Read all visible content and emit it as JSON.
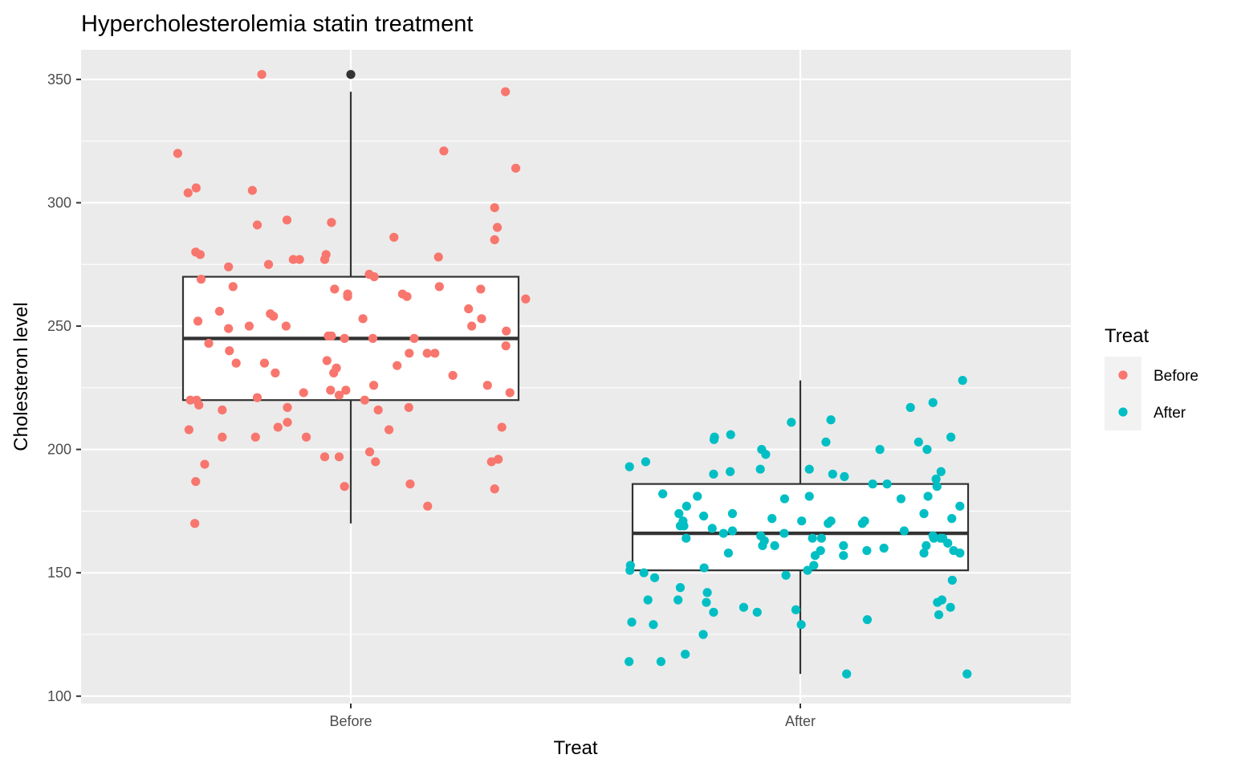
{
  "chart_data": {
    "type": "boxplot_with_jitter",
    "title": "Hypercholesterolemia statin treatment",
    "xlabel": "Treat",
    "ylabel": "Cholesteron level",
    "ylim": [
      97,
      362
    ],
    "yticks": [
      100,
      150,
      200,
      250,
      300,
      350
    ],
    "categories": [
      "Before",
      "After"
    ],
    "grid": true,
    "legend": {
      "title": "Treat",
      "position": "right",
      "entries": [
        {
          "label": "Before",
          "color": "#F8766D"
        },
        {
          "label": "After",
          "color": "#00BFC4"
        }
      ]
    },
    "colors": {
      "panel_background": "#EBEBEB",
      "grid": "#FFFFFF",
      "box_outline": "#333333",
      "outlier": "#333333"
    },
    "series": [
      {
        "name": "Before",
        "color": "#F8766D",
        "box": {
          "q1": 220,
          "median": 245,
          "q3": 270,
          "whisker_low": 170,
          "whisker_high": 345,
          "outliers": [
            352
          ]
        },
        "points": [
          [
            -0.385,
            320
          ],
          [
            -0.362,
            304
          ],
          [
            -0.344,
            306
          ],
          [
            -0.345,
            280
          ],
          [
            -0.335,
            279
          ],
          [
            -0.333,
            269
          ],
          [
            -0.34,
            252
          ],
          [
            -0.316,
            243
          ],
          [
            -0.292,
            256
          ],
          [
            -0.272,
            274
          ],
          [
            -0.272,
            249
          ],
          [
            -0.27,
            240
          ],
          [
            -0.262,
            266
          ],
          [
            -0.255,
            235
          ],
          [
            -0.357,
            220
          ],
          [
            -0.343,
            220
          ],
          [
            -0.338,
            218
          ],
          [
            -0.286,
            216
          ],
          [
            -0.36,
            208
          ],
          [
            -0.286,
            205
          ],
          [
            -0.345,
            187
          ],
          [
            -0.325,
            194
          ],
          [
            -0.347,
            170
          ],
          [
            -0.198,
            352
          ],
          [
            -0.219,
            305
          ],
          [
            -0.208,
            291
          ],
          [
            -0.183,
            275
          ],
          [
            -0.226,
            250
          ],
          [
            -0.179,
            255
          ],
          [
            -0.172,
            254
          ],
          [
            -0.168,
            231
          ],
          [
            -0.192,
            235
          ],
          [
            -0.208,
            221
          ],
          [
            -0.212,
            205
          ],
          [
            -0.162,
            209
          ],
          [
            -0.142,
            293
          ],
          [
            -0.128,
            277
          ],
          [
            -0.114,
            277
          ],
          [
            -0.144,
            250
          ],
          [
            -0.141,
            217
          ],
          [
            -0.141,
            211
          ],
          [
            -0.105,
            223
          ],
          [
            -0.099,
            205
          ],
          [
            -0.058,
            277
          ],
          [
            -0.055,
            279
          ],
          [
            -0.043,
            292
          ],
          [
            -0.036,
            265
          ],
          [
            -0.05,
            246
          ],
          [
            -0.043,
            246
          ],
          [
            -0.053,
            236
          ],
          [
            -0.038,
            231
          ],
          [
            -0.032,
            233
          ],
          [
            -0.045,
            224
          ],
          [
            -0.026,
            222
          ],
          [
            -0.058,
            197
          ],
          [
            -0.026,
            197
          ],
          [
            -0.014,
            245
          ],
          [
            -0.007,
            263
          ],
          [
            -0.007,
            262
          ],
          [
            -0.011,
            224
          ],
          [
            -0.014,
            185
          ],
          [
            0.027,
            253
          ],
          [
            0.041,
            271
          ],
          [
            0.052,
            270
          ],
          [
            0.049,
            245
          ],
          [
            0.031,
            220
          ],
          [
            0.042,
            199
          ],
          [
            0.055,
            195
          ],
          [
            0.051,
            226
          ],
          [
            0.061,
            216
          ],
          [
            0.085,
            208
          ],
          [
            0.096,
            286
          ],
          [
            0.103,
            234
          ],
          [
            0.115,
            263
          ],
          [
            0.125,
            262
          ],
          [
            0.13,
            239
          ],
          [
            0.129,
            217
          ],
          [
            0.132,
            186
          ],
          [
            0.141,
            245
          ],
          [
            0.17,
            239
          ],
          [
            0.171,
            177
          ],
          [
            0.187,
            239
          ],
          [
            0.195,
            278
          ],
          [
            0.197,
            266
          ],
          [
            0.207,
            321
          ],
          [
            0.227,
            230
          ],
          [
            0.262,
            257
          ],
          [
            0.269,
            250
          ],
          [
            0.289,
            265
          ],
          [
            0.291,
            253
          ],
          [
            0.304,
            226
          ],
          [
            0.313,
            195
          ],
          [
            0.32,
            298
          ],
          [
            0.32,
            285
          ],
          [
            0.326,
            290
          ],
          [
            0.328,
            196
          ],
          [
            0.336,
            209
          ],
          [
            0.344,
            345
          ],
          [
            0.346,
            248
          ],
          [
            0.345,
            242
          ],
          [
            0.354,
            223
          ],
          [
            0.367,
            314
          ],
          [
            0.389,
            261
          ],
          [
            0.32,
            184
          ]
        ]
      },
      {
        "name": "After",
        "color": "#00BFC4",
        "box": {
          "q1": 151,
          "median": 166,
          "q3": 186,
          "whisker_low": 109,
          "whisker_high": 228,
          "outliers": []
        },
        "points": [
          [
            -0.38,
            193
          ],
          [
            -0.344,
            195
          ],
          [
            -0.306,
            182
          ],
          [
            -0.378,
            153
          ],
          [
            -0.379,
            151
          ],
          [
            -0.348,
            150
          ],
          [
            -0.324,
            148
          ],
          [
            -0.339,
            139
          ],
          [
            -0.375,
            130
          ],
          [
            -0.327,
            129
          ],
          [
            -0.381,
            114
          ],
          [
            -0.31,
            114
          ],
          [
            -0.27,
            174
          ],
          [
            -0.261,
            171
          ],
          [
            -0.267,
            169
          ],
          [
            -0.253,
            177
          ],
          [
            -0.259,
            169
          ],
          [
            -0.254,
            164
          ],
          [
            -0.229,
            181
          ],
          [
            -0.272,
            139
          ],
          [
            -0.267,
            144
          ],
          [
            -0.256,
            117
          ],
          [
            -0.215,
            173
          ],
          [
            -0.214,
            152
          ],
          [
            -0.216,
            125
          ],
          [
            -0.207,
            142
          ],
          [
            -0.209,
            138
          ],
          [
            -0.193,
            134
          ],
          [
            -0.196,
            168
          ],
          [
            -0.192,
            204
          ],
          [
            -0.191,
            205
          ],
          [
            -0.193,
            190
          ],
          [
            -0.155,
            206
          ],
          [
            -0.156,
            191
          ],
          [
            -0.151,
            174
          ],
          [
            -0.16,
            158
          ],
          [
            -0.151,
            167
          ],
          [
            -0.171,
            166
          ],
          [
            -0.126,
            136
          ],
          [
            -0.086,
            200
          ],
          [
            -0.077,
            198
          ],
          [
            -0.089,
            192
          ],
          [
            -0.063,
            172
          ],
          [
            -0.088,
            165
          ],
          [
            -0.08,
            163
          ],
          [
            -0.084,
            161
          ],
          [
            -0.057,
            161
          ],
          [
            -0.096,
            134
          ],
          [
            -0.035,
            180
          ],
          [
            -0.036,
            166
          ],
          [
            -0.032,
            149
          ],
          [
            -0.02,
            211
          ],
          [
            -0.01,
            135
          ],
          [
            0.003,
            171
          ],
          [
            0.002,
            129
          ],
          [
            0.016,
            151
          ],
          [
            0.02,
            181
          ],
          [
            0.02,
            192
          ],
          [
            0.027,
            164
          ],
          [
            0.033,
            157
          ],
          [
            0.03,
            153
          ],
          [
            0.047,
            164
          ],
          [
            0.045,
            159
          ],
          [
            0.057,
            203
          ],
          [
            0.068,
            212
          ],
          [
            0.072,
            190
          ],
          [
            0.062,
            170
          ],
          [
            0.068,
            171
          ],
          [
            0.098,
            189
          ],
          [
            0.096,
            161
          ],
          [
            0.096,
            157
          ],
          [
            0.103,
            109
          ],
          [
            0.138,
            170
          ],
          [
            0.143,
            171
          ],
          [
            0.148,
            159
          ],
          [
            0.149,
            131
          ],
          [
            0.161,
            186
          ],
          [
            0.177,
            200
          ],
          [
            0.186,
            160
          ],
          [
            0.193,
            186
          ],
          [
            0.224,
            180
          ],
          [
            0.245,
            217
          ],
          [
            0.263,
            203
          ],
          [
            0.275,
            174
          ],
          [
            0.231,
            167
          ],
          [
            0.295,
            219
          ],
          [
            0.282,
            200
          ],
          [
            0.284,
            181
          ],
          [
            0.295,
            165
          ],
          [
            0.308,
            133
          ],
          [
            0.305,
            138
          ],
          [
            0.315,
            139
          ],
          [
            0.313,
            191
          ],
          [
            0.312,
            164
          ],
          [
            0.302,
            188
          ],
          [
            0.304,
            185
          ],
          [
            0.28,
            161
          ],
          [
            0.275,
            158
          ],
          [
            0.297,
            164
          ],
          [
            0.317,
            164
          ],
          [
            0.334,
            136
          ],
          [
            0.335,
            205
          ],
          [
            0.337,
            172
          ],
          [
            0.341,
            159
          ],
          [
            0.355,
            177
          ],
          [
            0.361,
            228
          ],
          [
            0.355,
            158
          ],
          [
            0.371,
            109
          ],
          [
            0.328,
            162
          ],
          [
            0.338,
            147
          ]
        ]
      }
    ]
  }
}
